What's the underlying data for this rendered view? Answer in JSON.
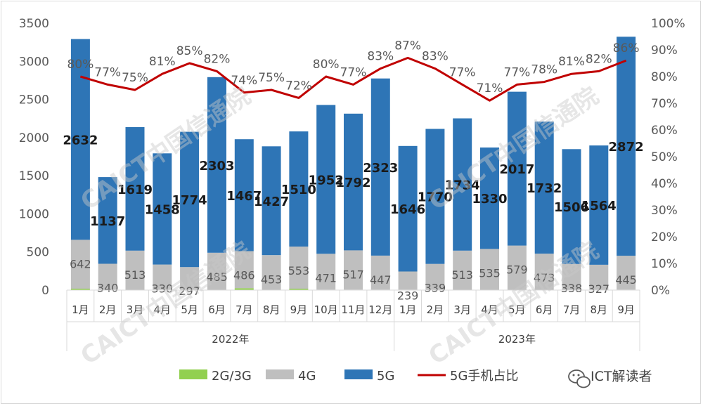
{
  "colors": {
    "g2g3": "#92d050",
    "g4": "#bfbfbf",
    "g5": "#2e75b6",
    "share": "#c00000"
  },
  "watermark": "CAICT中国信通院",
  "brand": {
    "text": "ICT解读者",
    "icon": "wechat-icon"
  },
  "chart_data": {
    "type": "bar",
    "stacked": true,
    "categories": [
      "1月",
      "2月",
      "3月",
      "4月",
      "5月",
      "6月",
      "7月",
      "8月",
      "9月",
      "10月",
      "11月",
      "12月",
      "1月",
      "2月",
      "3月",
      "4月",
      "5月",
      "6月",
      "7月",
      "8月",
      "9月"
    ],
    "groups": [
      {
        "label": "2022年",
        "count": 12
      },
      {
        "label": "2023年",
        "count": 9
      }
    ],
    "y_left": {
      "ticks": [
        "0",
        "500",
        "1000",
        "1500",
        "2000",
        "2500",
        "3000",
        "3500"
      ],
      "range": [
        0,
        3500
      ]
    },
    "y_right": {
      "ticks": [
        "0%",
        "10%",
        "20%",
        "30%",
        "40%",
        "50%",
        "60%",
        "70%",
        "80%",
        "90%",
        "100%"
      ],
      "range": [
        0,
        100
      ]
    },
    "series": [
      {
        "name": "2G/3G",
        "type": "bar",
        "values": [
          18,
          5,
          5,
          5,
          5,
          5,
          25,
          5,
          18,
          5,
          5,
          5,
          5,
          5,
          5,
          5,
          5,
          5,
          5,
          5,
          5
        ]
      },
      {
        "name": "4G",
        "type": "bar",
        "values": [
          642,
          340,
          513,
          330,
          297,
          485,
          486,
          453,
          553,
          471,
          517,
          447,
          239,
          339,
          513,
          535,
          579,
          473,
          338,
          327,
          445
        ],
        "labels": [
          "642",
          "340",
          "513",
          "330",
          "297",
          "485",
          "486",
          "453",
          "553",
          "471",
          "517",
          "447",
          "239",
          "339",
          "513",
          "535",
          "579",
          "473",
          "338",
          "327",
          "445"
        ]
      },
      {
        "name": "5G",
        "type": "bar",
        "values": [
          2632,
          1137,
          1619,
          1458,
          1774,
          2303,
          1467,
          1427,
          1510,
          1952,
          1792,
          2323,
          1646,
          1770,
          1734,
          1330,
          2017,
          1732,
          1506,
          1564,
          2872
        ],
        "labels": [
          "2632",
          "1137",
          "1619",
          "1458",
          "1774",
          "2303",
          "1467",
          "1427",
          "1510",
          "1952",
          "1792",
          "2323",
          "1646",
          "1770",
          "1734",
          "1330",
          "2017",
          "1732",
          "1506",
          "1564",
          "2872"
        ]
      },
      {
        "name": "5G手机占比",
        "type": "line",
        "axis": "right",
        "values": [
          80,
          77,
          75,
          81,
          85,
          82,
          74,
          75,
          72,
          80,
          77,
          83,
          87,
          83,
          77,
          71,
          77,
          78,
          81,
          82,
          86
        ],
        "labels": [
          "80%",
          "77%",
          "75%",
          "81%",
          "85%",
          "82%",
          "74%",
          "75%",
          "72%",
          "80%",
          "77%",
          "83%",
          "87%",
          "83%",
          "77%",
          "71%",
          "77%",
          "78%",
          "81%",
          "82%",
          "86%"
        ]
      }
    ],
    "legend": {
      "position": "bottom",
      "items": [
        "2G/3G",
        "4G",
        "5G",
        "5G手机占比"
      ]
    },
    "grid": false
  }
}
